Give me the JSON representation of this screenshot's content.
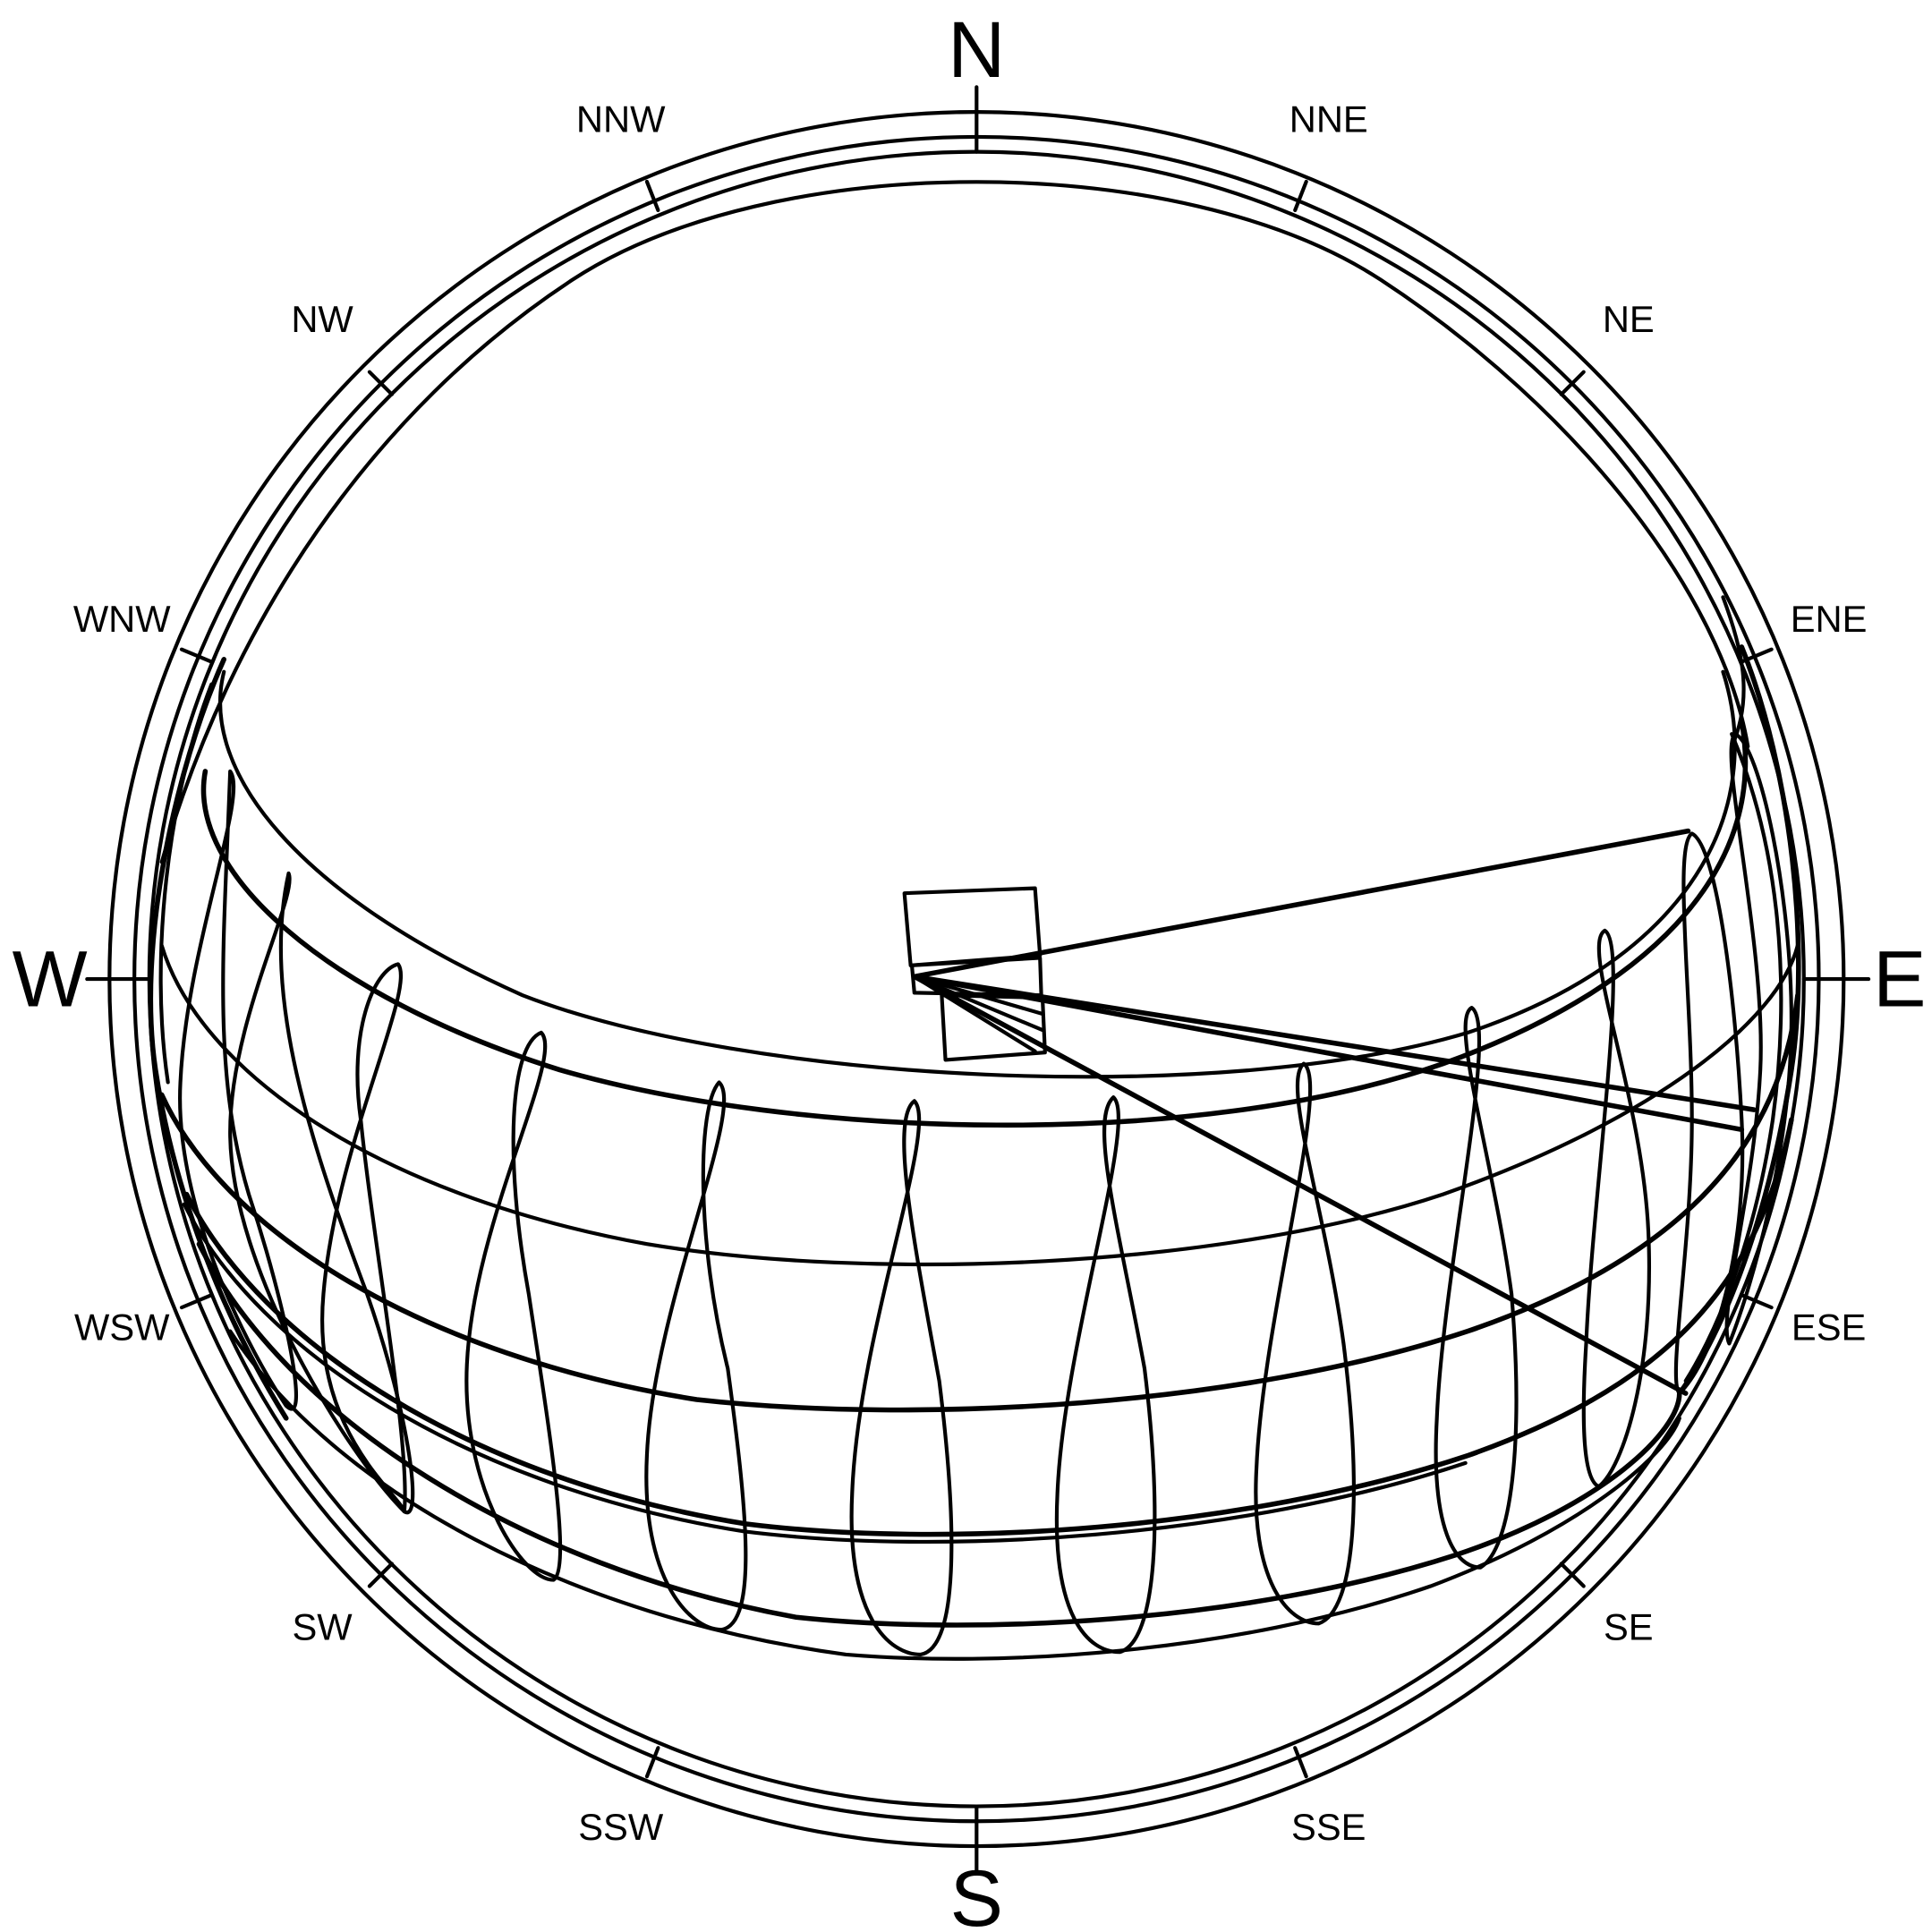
{
  "compass": {
    "north": "N",
    "east": "E",
    "south": "S",
    "west": "W",
    "intercardinal": {
      "nne": "NNE",
      "ne": "NE",
      "ene": "ENE",
      "ese": "ESE",
      "se": "SE",
      "sse": "SSE",
      "ssw": "SSW",
      "sw": "SW",
      "wsw": "WSW",
      "wnw": "WNW",
      "nw": "NW",
      "nnw": "NNW"
    }
  },
  "colors": {
    "line": "#000000",
    "background": "#ffffff"
  }
}
